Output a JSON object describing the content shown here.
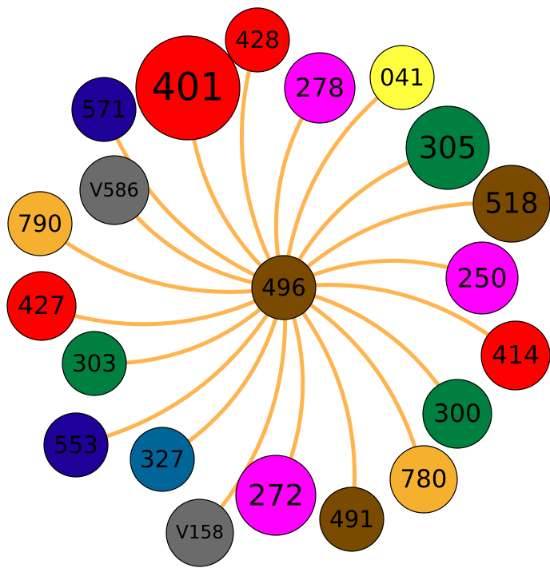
{
  "nodes": [
    {
      "label": "496",
      "color": "#7a4a00"
    },
    {
      "label": "401",
      "color": "#ff0000"
    },
    {
      "label": "428",
      "color": "#ff0000"
    },
    {
      "label": "278",
      "color": "#ff00ff"
    },
    {
      "label": "041",
      "color": "#ffff40"
    },
    {
      "label": "305",
      "color": "#008040"
    },
    {
      "label": "518",
      "color": "#7a4a00"
    },
    {
      "label": "250",
      "color": "#ff00ff"
    },
    {
      "label": "414",
      "color": "#ff0000"
    },
    {
      "label": "300",
      "color": "#008040"
    },
    {
      "label": "780",
      "color": "#f5b030"
    },
    {
      "label": "491",
      "color": "#7a4a00"
    },
    {
      "label": "272",
      "color": "#ff00ff"
    },
    {
      "label": "V158",
      "color": "#6b6b6b"
    },
    {
      "label": "327",
      "color": "#006699"
    },
    {
      "label": "553",
      "color": "#1f0099"
    },
    {
      "label": "303",
      "color": "#008040"
    },
    {
      "label": "427",
      "color": "#ff0000"
    },
    {
      "label": "790",
      "color": "#f5b030"
    },
    {
      "label": "V586",
      "color": "#6b6b6b"
    },
    {
      "label": "571",
      "color": "#1f0099"
    }
  ]
}
